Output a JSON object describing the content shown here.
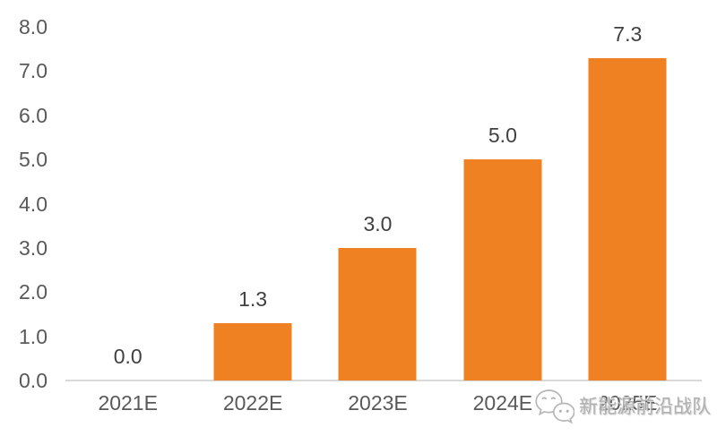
{
  "chart_data": {
    "type": "bar",
    "title": "",
    "categories": [
      "2021E",
      "2022E",
      "2023E",
      "2024E",
      "2025E"
    ],
    "values": [
      0.0,
      1.3,
      3.0,
      5.0,
      7.3
    ],
    "data_labels": [
      "0.0",
      "1.3",
      "3.0",
      "5.0",
      "7.3"
    ],
    "xlabel": "",
    "ylabel": "",
    "ylim": [
      0,
      8
    ],
    "y_tick_step": 1.0,
    "y_tick_labels": [
      "0.0",
      "1.0",
      "2.0",
      "3.0",
      "4.0",
      "5.0",
      "6.0",
      "7.0",
      "8.0"
    ],
    "grid": false,
    "legend_position": "none",
    "bar_color": "#F08122",
    "axis_line_color": "#D9D9D9",
    "tick_label_color": "#595959",
    "data_label_color": "#404040"
  },
  "watermark": {
    "icon": "wechat-icon",
    "text": "新能源前沿战队",
    "color": "#ACACAC"
  }
}
